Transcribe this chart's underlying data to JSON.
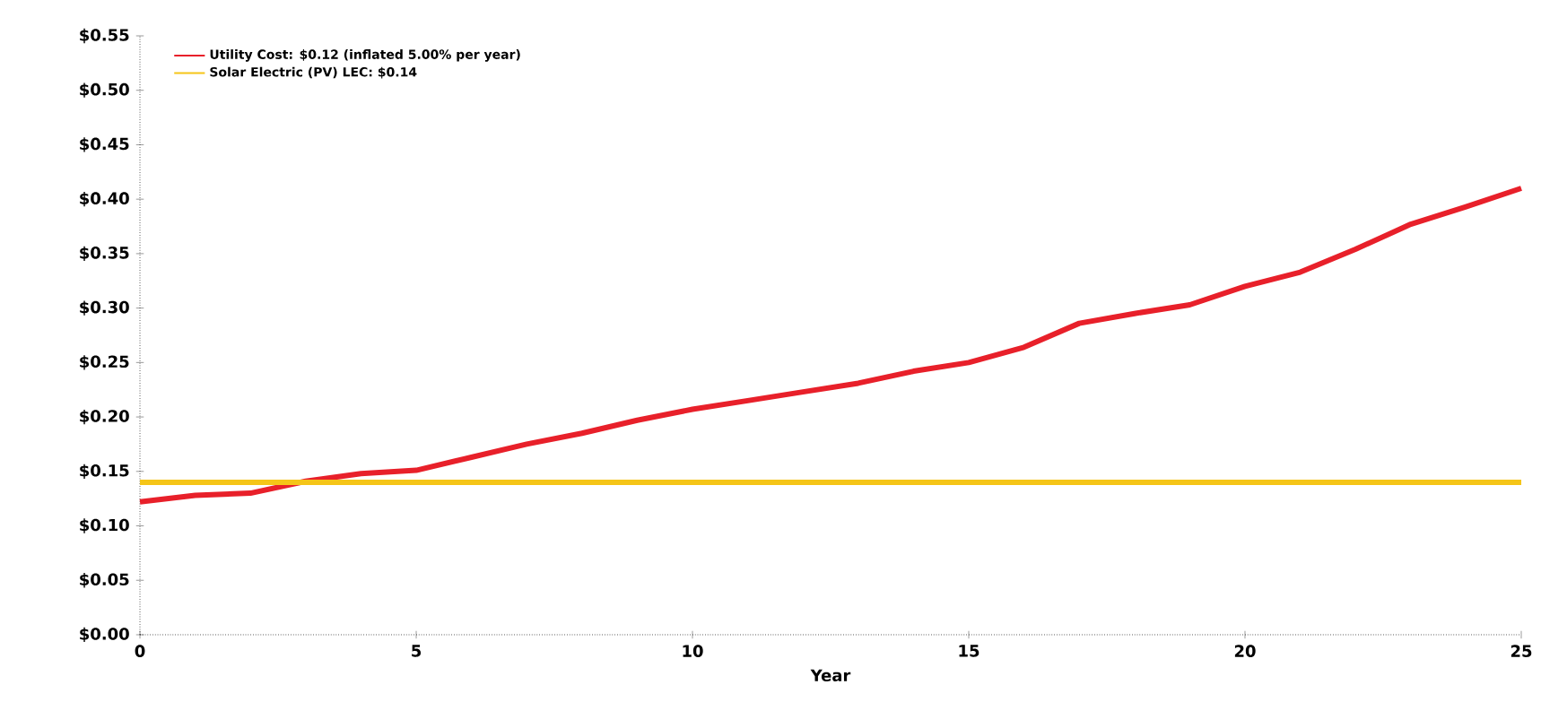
{
  "chart_data": {
    "type": "line",
    "xlabel": "Year",
    "x": [
      0,
      1,
      2,
      3,
      4,
      5,
      6,
      7,
      8,
      9,
      10,
      11,
      12,
      13,
      14,
      15,
      16,
      17,
      18,
      19,
      20,
      21,
      22,
      23,
      24,
      25
    ],
    "series": [
      {
        "name": "Utility Cost: $0.12 (inflated 5.00% per year)",
        "color": "#e8202a",
        "values": [
          0.122,
          0.128,
          0.13,
          0.141,
          0.148,
          0.151,
          0.163,
          0.175,
          0.185,
          0.197,
          0.207,
          0.215,
          0.223,
          0.231,
          0.242,
          0.25,
          0.264,
          0.286,
          0.295,
          0.303,
          0.32,
          0.333,
          0.354,
          0.377,
          0.393,
          0.41
        ]
      },
      {
        "name": "Solar Electric (PV) LEC: $0.14",
        "color": "#f5c518",
        "values": [
          0.14,
          0.14,
          0.14,
          0.14,
          0.14,
          0.14,
          0.14,
          0.14,
          0.14,
          0.14,
          0.14,
          0.14,
          0.14,
          0.14,
          0.14,
          0.14,
          0.14,
          0.14,
          0.14,
          0.14,
          0.14,
          0.14,
          0.14,
          0.14,
          0.14,
          0.14
        ]
      }
    ],
    "xlim": [
      0,
      25
    ],
    "ylim": [
      0,
      0.55
    ],
    "xticks": [
      0,
      5,
      10,
      15,
      20,
      25
    ],
    "yticks": [
      {
        "value": 0,
        "label": "$0.00"
      },
      {
        "value": 0.05,
        "label": "$0.05"
      },
      {
        "value": 0.1,
        "label": "$0.10"
      },
      {
        "value": 0.15,
        "label": "$0.15"
      },
      {
        "value": 0.2,
        "label": "$0.20"
      },
      {
        "value": 0.25,
        "label": "$0.25"
      },
      {
        "value": 0.3,
        "label": "$0.30"
      },
      {
        "value": 0.35,
        "label": "$0.35"
      },
      {
        "value": 0.4,
        "label": "$0.40"
      },
      {
        "value": 0.45,
        "label": "$0.45"
      },
      {
        "value": 0.5,
        "label": "$0.50"
      },
      {
        "value": 0.55,
        "label": "$0.55"
      }
    ],
    "legend": "top left",
    "grid": false,
    "marker": "none",
    "line_style": "solid"
  }
}
